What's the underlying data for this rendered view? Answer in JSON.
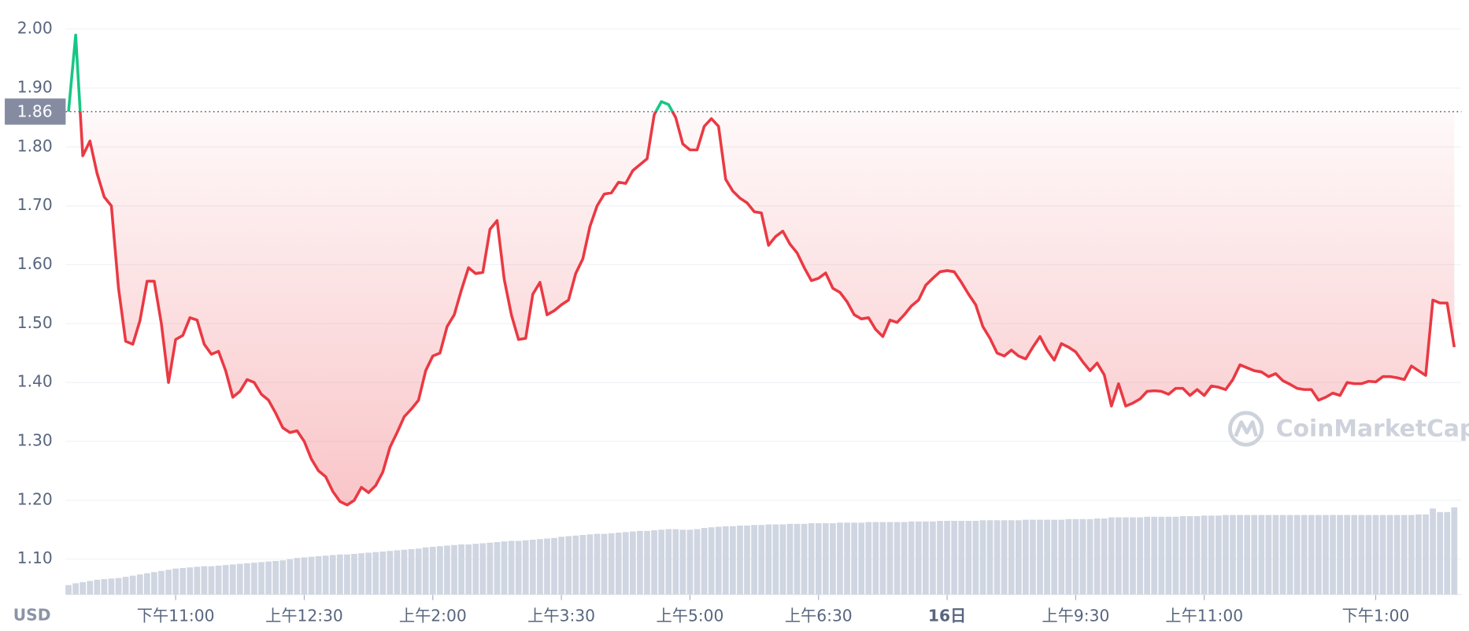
{
  "chart_data": {
    "type": "line",
    "x": [
      1305,
      1310,
      1315,
      1320,
      1325,
      1330,
      1335,
      1340,
      1345,
      1350,
      1355,
      1360,
      1365,
      1370,
      1375,
      1380,
      1385,
      1390,
      1395,
      1400,
      1405,
      1410,
      1415,
      1420,
      1425,
      1430,
      1435,
      1440,
      1445,
      1450,
      1455,
      1460,
      1465,
      1470,
      1475,
      1480,
      1485,
      1490,
      1495,
      1500,
      1505,
      1510,
      1515,
      1520,
      1525,
      1530,
      1535,
      1540,
      1545,
      1550,
      1555,
      1560,
      1565,
      1570,
      1575,
      1580,
      1585,
      1590,
      1595,
      1600,
      1605,
      1610,
      1615,
      1620,
      1625,
      1630,
      1635,
      1640,
      1645,
      1650,
      1655,
      1660,
      1665,
      1670,
      1675,
      1680,
      1685,
      1690,
      1695,
      1700,
      1705,
      1710,
      1715,
      1720,
      1725,
      1730,
      1735,
      1740,
      1745,
      1750,
      1755,
      1760,
      1765,
      1770,
      1775,
      1780,
      1785,
      1790,
      1795,
      1800,
      1805,
      1810,
      1815,
      1820,
      1825,
      1830,
      1835,
      1840,
      1845,
      1850,
      1855,
      1860,
      1865,
      1870,
      1875,
      1880,
      1885,
      1890,
      1895,
      1900,
      1905,
      1910,
      1915,
      1920,
      1925,
      1930,
      1935,
      1940,
      1945,
      1950,
      1955,
      1960,
      1965,
      1970,
      1975,
      1980,
      1985,
      1990,
      1995,
      2000,
      2005,
      2010,
      2015,
      2020,
      2025,
      2030,
      2035,
      2040,
      2045,
      2050,
      2055,
      2060,
      2065,
      2070,
      2075,
      2080,
      2085,
      2090,
      2095,
      2100,
      2105,
      2110,
      2115,
      2120,
      2125,
      2130,
      2135,
      2140,
      2145,
      2150,
      2155,
      2160,
      2165,
      2170,
      2175,
      2180,
      2185,
      2190,
      2195,
      2200,
      2205,
      2210,
      2215,
      2220,
      2225,
      2230,
      2235,
      2240,
      2245,
      2250,
      2255,
      2260,
      2265,
      2270,
      2275
    ],
    "series": [
      {
        "color": "#ea3943",
        "up_color": "#16c784",
        "values": [
          1.86,
          1.99,
          1.785,
          1.81,
          1.755,
          1.715,
          1.7,
          1.56,
          1.47,
          1.465,
          1.505,
          1.572,
          1.572,
          1.5,
          1.4,
          1.473,
          1.48,
          1.51,
          1.506,
          1.465,
          1.448,
          1.453,
          1.42,
          1.375,
          1.385,
          1.405,
          1.4,
          1.38,
          1.37,
          1.348,
          1.323,
          1.315,
          1.318,
          1.3,
          1.27,
          1.25,
          1.24,
          1.215,
          1.198,
          1.192,
          1.2,
          1.222,
          1.213,
          1.225,
          1.248,
          1.29,
          1.315,
          1.342,
          1.355,
          1.37,
          1.42,
          1.445,
          1.45,
          1.495,
          1.515,
          1.557,
          1.595,
          1.585,
          1.587,
          1.66,
          1.675,
          1.575,
          1.515,
          1.473,
          1.475,
          1.55,
          1.57,
          1.515,
          1.522,
          1.532,
          1.54,
          1.585,
          1.61,
          1.665,
          1.7,
          1.72,
          1.722,
          1.74,
          1.738,
          1.76,
          1.77,
          1.78,
          1.855,
          1.877,
          1.872,
          1.85,
          1.805,
          1.795,
          1.795,
          1.835,
          1.848,
          1.835,
          1.745,
          1.725,
          1.713,
          1.705,
          1.69,
          1.688,
          1.633,
          1.648,
          1.657,
          1.635,
          1.62,
          1.595,
          1.573,
          1.577,
          1.586,
          1.56,
          1.553,
          1.537,
          1.515,
          1.508,
          1.51,
          1.49,
          1.478,
          1.506,
          1.502,
          1.515,
          1.53,
          1.54,
          1.565,
          1.577,
          1.588,
          1.59,
          1.588,
          1.57,
          1.55,
          1.532,
          1.495,
          1.475,
          1.45,
          1.445,
          1.455,
          1.445,
          1.44,
          1.46,
          1.478,
          1.455,
          1.438,
          1.466,
          1.46,
          1.452,
          1.435,
          1.42,
          1.433,
          1.413,
          1.36,
          1.398,
          1.36,
          1.365,
          1.372,
          1.385,
          1.386,
          1.385,
          1.38,
          1.39,
          1.39,
          1.378,
          1.388,
          1.378,
          1.394,
          1.392,
          1.388,
          1.405,
          1.43,
          1.425,
          1.42,
          1.418,
          1.41,
          1.415,
          1.403,
          1.397,
          1.39,
          1.388,
          1.388,
          1.37,
          1.375,
          1.382,
          1.378,
          1.4,
          1.398,
          1.398,
          1.402,
          1.401,
          1.41,
          1.41,
          1.408,
          1.405,
          1.428,
          1.42,
          1.412,
          1.54,
          1.535,
          1.535,
          1.46
        ]
      },
      {
        "type": "bar",
        "axis": "y2",
        "color": "#cfd5e1",
        "values": [
          1.6,
          1.9,
          2.1,
          2.3,
          2.5,
          2.6,
          2.7,
          2.8,
          3.0,
          3.2,
          3.4,
          3.6,
          3.8,
          4.0,
          4.2,
          4.4,
          4.5,
          4.6,
          4.7,
          4.8,
          4.8,
          4.9,
          5.0,
          5.1,
          5.2,
          5.3,
          5.4,
          5.5,
          5.6,
          5.7,
          5.8,
          6.0,
          6.2,
          6.3,
          6.4,
          6.5,
          6.6,
          6.7,
          6.8,
          6.8,
          6.9,
          7.0,
          7.1,
          7.2,
          7.3,
          7.4,
          7.5,
          7.6,
          7.7,
          7.8,
          8.0,
          8.1,
          8.2,
          8.3,
          8.4,
          8.5,
          8.5,
          8.6,
          8.7,
          8.8,
          8.9,
          9.0,
          9.1,
          9.1,
          9.2,
          9.3,
          9.4,
          9.5,
          9.6,
          9.8,
          9.9,
          10.0,
          10.1,
          10.2,
          10.3,
          10.3,
          10.4,
          10.5,
          10.6,
          10.7,
          10.8,
          10.8,
          10.9,
          11.0,
          11.1,
          11.1,
          11.0,
          11.0,
          11.1,
          11.3,
          11.4,
          11.5,
          11.6,
          11.6,
          11.7,
          11.7,
          11.8,
          11.8,
          11.9,
          11.9,
          11.9,
          12.0,
          12.0,
          12.0,
          12.1,
          12.1,
          12.1,
          12.1,
          12.2,
          12.2,
          12.2,
          12.2,
          12.3,
          12.3,
          12.3,
          12.3,
          12.3,
          12.3,
          12.4,
          12.4,
          12.4,
          12.4,
          12.5,
          12.5,
          12.5,
          12.5,
          12.5,
          12.5,
          12.6,
          12.6,
          12.6,
          12.6,
          12.6,
          12.6,
          12.7,
          12.7,
          12.7,
          12.7,
          12.7,
          12.7,
          12.8,
          12.8,
          12.8,
          12.8,
          12.9,
          12.9,
          13.1,
          13.1,
          13.1,
          13.1,
          13.1,
          13.2,
          13.2,
          13.2,
          13.2,
          13.2,
          13.3,
          13.3,
          13.3,
          13.4,
          13.4,
          13.4,
          13.5,
          13.5,
          13.5,
          13.5,
          13.5,
          13.5,
          13.5,
          13.5,
          13.5,
          13.5,
          13.5,
          13.5,
          13.5,
          13.5,
          13.5,
          13.5,
          13.5,
          13.5,
          13.5,
          13.5,
          13.5,
          13.5,
          13.5,
          13.5,
          13.5,
          13.5,
          13.5,
          13.6,
          13.6,
          14.6,
          14.0,
          14.0,
          14.8
        ]
      }
    ],
    "reference": 1.86,
    "xlim": [
      1303,
      2280
    ],
    "xticks": [
      {
        "value": 1380,
        "label": "下午11:00"
      },
      {
        "value": 1470,
        "label": "上午12:30"
      },
      {
        "value": 1560,
        "label": "上午2:00"
      },
      {
        "value": 1650,
        "label": "上午3:30"
      },
      {
        "value": 1740,
        "label": "上午5:00"
      },
      {
        "value": 1830,
        "label": "上午6:30"
      },
      {
        "value": 1920,
        "label": "16日"
      },
      {
        "value": 2010,
        "label": "上午9:30"
      },
      {
        "value": 2100,
        "label": "上午11:00"
      },
      {
        "value": 2220,
        "label": "下午1:00"
      }
    ],
    "ylim": [
      1.04,
      2.04
    ],
    "yticks": [
      {
        "value": 1.1,
        "label": "1.10"
      },
      {
        "value": 1.2,
        "label": "1.20"
      },
      {
        "value": 1.3,
        "label": "1.30"
      },
      {
        "value": 1.4,
        "label": "1.40"
      },
      {
        "value": 1.5,
        "label": "1.50"
      },
      {
        "value": 1.6,
        "label": "1.60"
      },
      {
        "value": 1.7,
        "label": "1.70"
      },
      {
        "value": 1.8,
        "label": "1.80"
      },
      {
        "value": 1.9,
        "label": "1.90"
      },
      {
        "value": 2,
        "label": "2.00"
      }
    ],
    "y2lim": [
      0,
      100
    ],
    "grid": true,
    "y_unit": "USD",
    "watermark": "CoinMarketCap"
  }
}
